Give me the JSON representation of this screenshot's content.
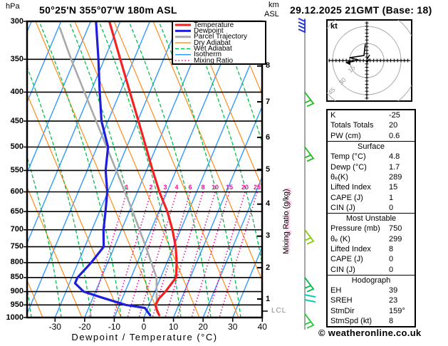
{
  "header": {
    "pressure_unit": "hPa",
    "location": "50°25'N 355°07'W 180m ASL",
    "altitude_unit_lines": [
      "km",
      "ASL"
    ],
    "datetime": "29.12.2025 21GMT (Base: 18)"
  },
  "legend": {
    "items": [
      {
        "label": "Temperature",
        "color": "#f32222",
        "width": 3,
        "dash": ""
      },
      {
        "label": "Dewpoint",
        "color": "#1f1fd9",
        "width": 3,
        "dash": ""
      },
      {
        "label": "Parcel Trajectory",
        "color": "#a9a9a9",
        "width": 3,
        "dash": ""
      },
      {
        "label": "Dry Adiabat",
        "color": "#ff8c1a",
        "width": 1.4,
        "dash": ""
      },
      {
        "label": "Wet Adiabat",
        "color": "#00c04a",
        "width": 1.4,
        "dash": "5,3"
      },
      {
        "label": "Isotherm",
        "color": "#3399ff",
        "width": 1.4,
        "dash": ""
      },
      {
        "label": "Mixing Ratio",
        "color": "#ee1199",
        "width": 1.6,
        "dash": "1.5,3"
      }
    ]
  },
  "axes": {
    "pressure_ticks": [
      300,
      350,
      400,
      450,
      500,
      550,
      600,
      650,
      700,
      750,
      800,
      850,
      900,
      950,
      1000
    ],
    "temp_ticks": [
      -30,
      -20,
      -10,
      0,
      10,
      20,
      30,
      40
    ],
    "x_label": "Dewpoint / Temperature (°C)",
    "km_ticks": [
      1,
      2,
      3,
      4,
      5,
      6,
      7,
      8
    ],
    "lcl_label": "LCL",
    "mixing_axis_label": "Mixing Ratio (g/kg)",
    "mixing_values": [
      1,
      2,
      3,
      4,
      6,
      8,
      10,
      15,
      20,
      25
    ]
  },
  "hodograph": {
    "unit_label": "kt",
    "ring_labels": [
      15,
      30,
      45
    ],
    "trace_uv_kt": [
      [
        -1.3,
        14.4
      ],
      [
        -2.5,
        4.4
      ],
      [
        -15,
        2.5
      ],
      [
        -7.5,
        0.6
      ],
      [
        -16.3,
        -1.9
      ]
    ]
  },
  "info_table": {
    "sections": [
      {
        "header": "",
        "rows": [
          [
            "K",
            "-25"
          ],
          [
            "Totals Totals",
            "20"
          ],
          [
            "PW (cm)",
            "0.6"
          ]
        ]
      },
      {
        "header": "Surface",
        "rows": [
          [
            "Temp (°C)",
            "4.8"
          ],
          [
            "Dewp (°C)",
            "1.7"
          ],
          [
            "θₑ(K)",
            "289"
          ],
          [
            "Lifted Index",
            "15"
          ],
          [
            "CAPE (J)",
            "1"
          ],
          [
            "CIN (J)",
            "0"
          ]
        ]
      },
      {
        "header": "Most Unstable",
        "rows": [
          [
            "Pressure (mb)",
            "750"
          ],
          [
            "θₑ (K)",
            "299"
          ],
          [
            "Lifted Index",
            "8"
          ],
          [
            "CAPE (J)",
            "0"
          ],
          [
            "CIN (J)",
            "0"
          ]
        ]
      },
      {
        "header": "Hodograph",
        "rows": [
          [
            "EH",
            "39"
          ],
          [
            "SREH",
            "23"
          ],
          [
            "StmDir",
            "159°"
          ],
          [
            "StmSpd (kt)",
            "8"
          ]
        ]
      }
    ]
  },
  "watermark": "© weatheronline.co.uk",
  "chart_data": {
    "type": "line",
    "variant": "skew-T log-p sounding",
    "pressure_axis_hPa": [
      300,
      1000
    ],
    "temperature_axis_C": [
      -38,
      40
    ],
    "grid": {
      "isotherm_step_C": 10,
      "mixing_lines_below_hPa": 600
    },
    "series": [
      {
        "name": "Temperature",
        "units": [
          "hPa",
          "°C"
        ],
        "points": [
          [
            990,
            4.8
          ],
          [
            965,
            3.0
          ],
          [
            950,
            2.1
          ],
          [
            925,
            2.4
          ],
          [
            900,
            3.6
          ],
          [
            850,
            5.2
          ],
          [
            800,
            3.3
          ],
          [
            750,
            0.7
          ],
          [
            700,
            -2.8
          ],
          [
            650,
            -7.1
          ],
          [
            600,
            -12.6
          ],
          [
            550,
            -17.9
          ],
          [
            500,
            -23.5
          ],
          [
            450,
            -29.7
          ],
          [
            400,
            -36.7
          ],
          [
            350,
            -44.6
          ],
          [
            300,
            -53.7
          ]
        ]
      },
      {
        "name": "Dewpoint",
        "units": [
          "hPa",
          "°C"
        ],
        "points": [
          [
            990,
            1.7
          ],
          [
            962,
            -1.0
          ],
          [
            950,
            -7.9
          ],
          [
            920,
            -17.7
          ],
          [
            900,
            -24.0
          ],
          [
            870,
            -28.1
          ],
          [
            850,
            -28.1
          ],
          [
            800,
            -25.6
          ],
          [
            750,
            -23.6
          ],
          [
            700,
            -26.1
          ],
          [
            650,
            -28.0
          ],
          [
            600,
            -30.2
          ],
          [
            550,
            -33.8
          ],
          [
            500,
            -36.3
          ],
          [
            450,
            -42.2
          ],
          [
            400,
            -46.9
          ],
          [
            350,
            -52.0
          ],
          [
            300,
            -58.2
          ]
        ]
      },
      {
        "name": "Parcel Trajectory",
        "units": [
          "hPa",
          "°C"
        ],
        "points": [
          [
            990,
            4.8
          ],
          [
            974,
            3.4
          ],
          [
            850,
            -1.4
          ],
          [
            750,
            -9.4
          ],
          [
            650,
            -18.8
          ],
          [
            550,
            -30.2
          ],
          [
            450,
            -44.0
          ],
          [
            350,
            -61.2
          ],
          [
            308,
            -69.5
          ]
        ]
      }
    ],
    "lcl_pressure_hPa": 974,
    "wind_barbs": [
      {
        "pressure_hPa": 300,
        "color": "#2233dd",
        "style": "up"
      },
      {
        "pressure_hPa": 400,
        "color": "#22bb22",
        "style": "down-right"
      },
      {
        "pressure_hPa": 500,
        "color": "#22bb22",
        "style": "down-right"
      },
      {
        "pressure_hPa": 700,
        "color": "#88cc00",
        "style": "down-right"
      },
      {
        "pressure_hPa": 850,
        "color": "#00bb44",
        "style": "down-right"
      },
      {
        "pressure_hPa": 925,
        "color": "#00ccaa",
        "style": "right"
      },
      {
        "pressure_hPa": 985,
        "color": "#22cc33",
        "style": "down-right"
      }
    ]
  }
}
